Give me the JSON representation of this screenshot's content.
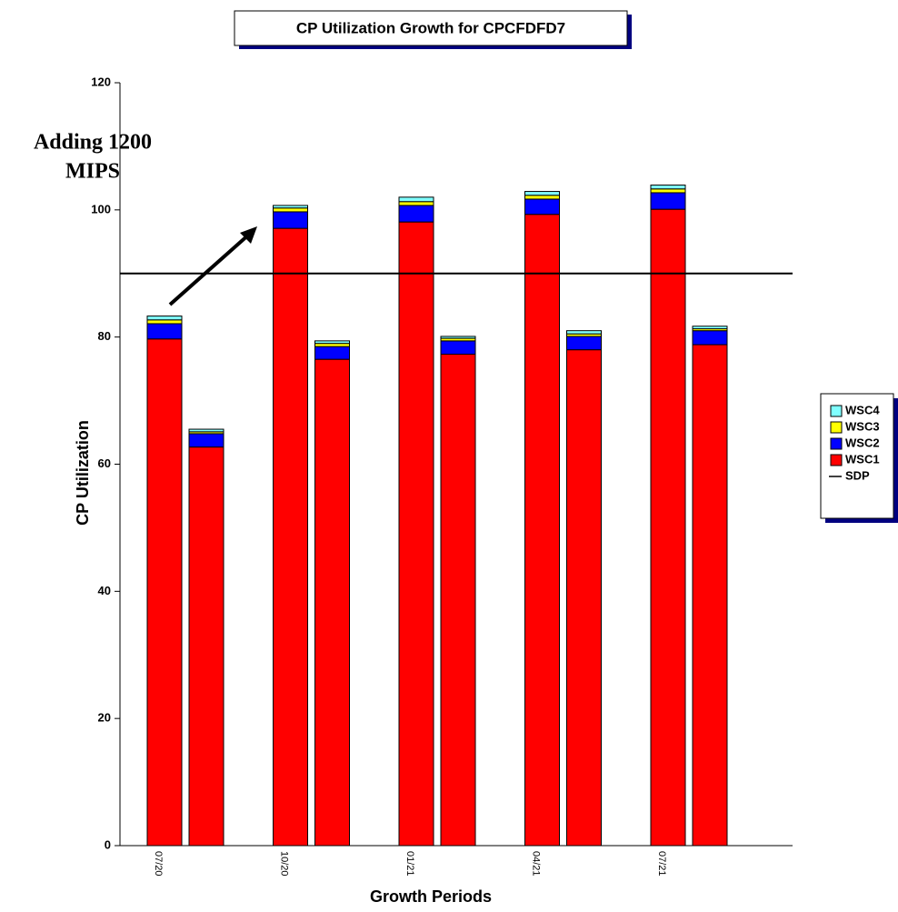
{
  "chart_data": {
    "type": "stacked_bar",
    "title": "CP Utilization Growth for CPCFDFD7",
    "xlabel": "Growth Periods",
    "ylabel": "CP Utilization",
    "annotation": [
      "Adding 1200",
      "MIPS"
    ],
    "categories": [
      "07/20",
      null,
      "10/20",
      null,
      "01/21",
      null,
      "04/21",
      null,
      "07/21",
      null
    ],
    "series": [
      {
        "name": "WSC1",
        "color": "#ff0000",
        "values": [
          79.7,
          62.7,
          97.1,
          76.5,
          98.1,
          77.3,
          99.3,
          78.0,
          100.1,
          78.8
        ]
      },
      {
        "name": "WSC2",
        "color": "#0000ff",
        "values": [
          2.4,
          2.1,
          2.6,
          2.0,
          2.6,
          2.1,
          2.4,
          2.1,
          2.6,
          2.2
        ]
      },
      {
        "name": "WSC3",
        "color": "#ffff00",
        "values": [
          0.6,
          0.3,
          0.6,
          0.5,
          0.6,
          0.4,
          0.6,
          0.4,
          0.6,
          0.3
        ]
      },
      {
        "name": "WSC4",
        "color": "#80ffff",
        "values": [
          0.6,
          0.4,
          0.4,
          0.4,
          0.7,
          0.3,
          0.6,
          0.5,
          0.6,
          0.4
        ]
      }
    ],
    "reference_line": {
      "name": "SDP",
      "value": 90,
      "color": "#000000"
    },
    "ylim": [
      0,
      120
    ],
    "yticks": [
      0,
      20,
      40,
      60,
      80,
      100,
      120
    ],
    "legend": "right"
  }
}
